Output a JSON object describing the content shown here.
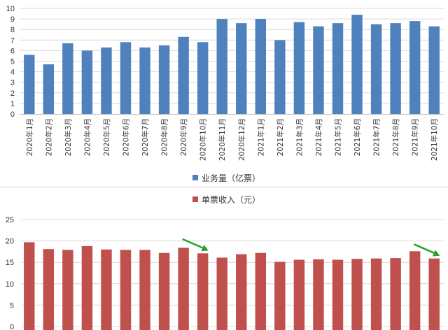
{
  "chart_data": [
    {
      "type": "bar",
      "title": "",
      "legend": "业务量（亿票）",
      "legend_position": "bottom",
      "color": "#4f81bd",
      "categories": [
        "2020年1月",
        "2020年2月",
        "2020年3月",
        "2020年4月",
        "2020年5月",
        "2020年6月",
        "2020年7月",
        "2020年8月",
        "2020年9月",
        "2020年10月",
        "2020年11月",
        "2020年12月",
        "2021年1月",
        "2021年2月",
        "2021年3月",
        "2021年4月",
        "2021年5月",
        "2021年6月",
        "2021年7月",
        "2021年8月",
        "2021年9月",
        "2021年10月"
      ],
      "values": [
        5.6,
        4.7,
        6.7,
        6.0,
        6.3,
        6.8,
        6.3,
        6.5,
        7.3,
        6.8,
        9.0,
        8.6,
        9.0,
        7.0,
        8.7,
        8.3,
        8.6,
        9.4,
        8.5,
        8.6,
        8.8,
        8.3
      ],
      "yticks": [
        0,
        1,
        2,
        3,
        4,
        5,
        6,
        7,
        8,
        9,
        10
      ],
      "ylim": [
        0,
        10
      ],
      "xlabel": "",
      "ylabel": "",
      "grid": true
    },
    {
      "type": "bar",
      "title": "",
      "legend": "单票收入（元）",
      "legend_position": "top",
      "color": "#c0504d",
      "values": [
        19.7,
        18.1,
        17.9,
        18.8,
        18.0,
        17.9,
        17.9,
        17.2,
        18.4,
        17.1,
        16.1,
        16.9,
        17.2,
        15.1,
        15.6,
        15.7,
        15.6,
        15.8,
        15.9,
        16.0,
        17.6,
        15.9
      ],
      "yticks": [
        0,
        5,
        10,
        15,
        20,
        25
      ],
      "ylim": [
        0,
        25
      ],
      "xlabel": "",
      "ylabel": "",
      "grid": true,
      "annotations": [
        {
          "kind": "arrow",
          "color": "#2ca02c",
          "at_category_index": 9
        },
        {
          "kind": "arrow",
          "color": "#2ca02c",
          "at_category_index": 21
        }
      ]
    }
  ]
}
